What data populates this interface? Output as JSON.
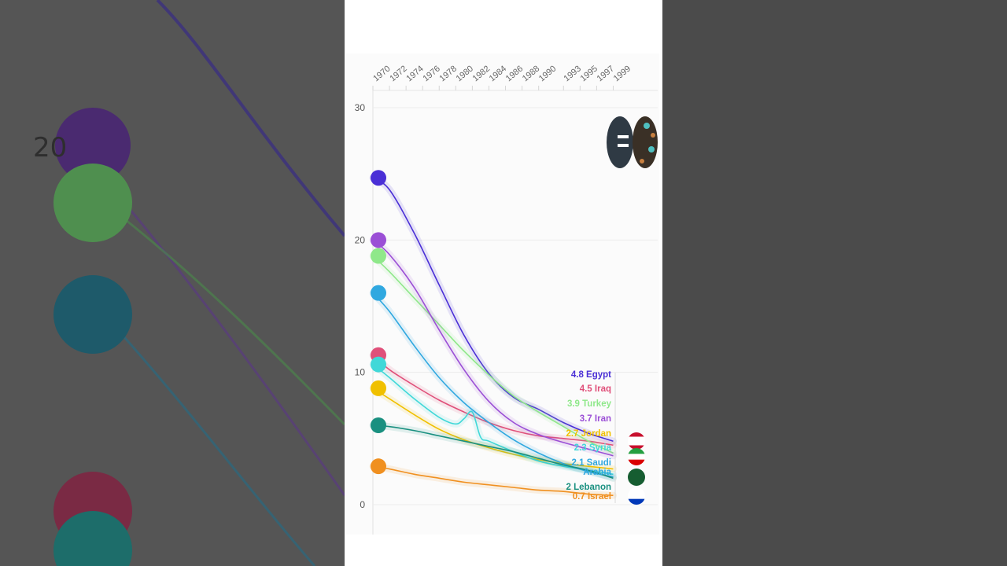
{
  "chart_data": {
    "type": "line",
    "title": "",
    "xlabel": "",
    "ylabel": "",
    "x_ticks": [
      "1970",
      "1972",
      "1974",
      "1976",
      "1978",
      "1980",
      "1982",
      "1984",
      "1986",
      "1988",
      "1990",
      "1993",
      "1995",
      "1997",
      "1999"
    ],
    "y_ticks": [
      0,
      10,
      20,
      30
    ],
    "xlim": [
      1970,
      2000
    ],
    "ylim": [
      0,
      30
    ],
    "grid": true,
    "series": [
      {
        "name": "Egypt",
        "label": "4.8 Egypt",
        "color": "#4a2fd6",
        "x": [
          1970,
          1972,
          1975,
          1978,
          1981,
          1984,
          1987,
          1990,
          1993,
          1996,
          1999
        ],
        "y": [
          24.7,
          23.8,
          20.5,
          16.6,
          12.8,
          9.9,
          8.1,
          7.2,
          6.2,
          5.4,
          4.8
        ]
      },
      {
        "name": "Iraq",
        "label": "4.5 Iraq",
        "color": "#e0507a",
        "x": [
          1970,
          1972,
          1975,
          1978,
          1981,
          1984,
          1987,
          1990,
          1993,
          1996,
          1999
        ],
        "y": [
          11.3,
          10.2,
          9.0,
          7.9,
          7.0,
          6.2,
          5.6,
          5.2,
          5.0,
          4.8,
          4.5
        ]
      },
      {
        "name": "Turkey",
        "label": "3.9 Turkey",
        "color": "#8fe88a",
        "x": [
          1970,
          1972,
          1975,
          1978,
          1981,
          1984,
          1987,
          1990,
          1993,
          1996,
          1999
        ],
        "y": [
          18.8,
          17.6,
          15.6,
          13.6,
          11.6,
          9.8,
          8.2,
          7.0,
          5.9,
          4.8,
          3.9
        ]
      },
      {
        "name": "Iran",
        "label": "3.7 Iran",
        "color": "#9b4fd6",
        "x": [
          1970,
          1972,
          1975,
          1978,
          1981,
          1984,
          1987,
          1990,
          1993,
          1996,
          1999
        ],
        "y": [
          20.0,
          18.9,
          16.4,
          13.2,
          10.2,
          7.8,
          6.2,
          5.3,
          4.7,
          4.2,
          3.7
        ]
      },
      {
        "name": "Jordan",
        "label": "2.7 Jordan",
        "color": "#f0c000",
        "x": [
          1970,
          1972,
          1975,
          1978,
          1981,
          1984,
          1987,
          1990,
          1993,
          1996,
          1999
        ],
        "y": [
          8.8,
          8.0,
          6.8,
          5.7,
          4.9,
          4.3,
          3.8,
          3.4,
          3.1,
          2.9,
          2.7
        ]
      },
      {
        "name": "Syria",
        "label": "2.3 Syria",
        "color": "#40d8d8",
        "x": [
          1970,
          1972,
          1975,
          1978,
          1980,
          1981,
          1982,
          1983,
          1984,
          1987,
          1990,
          1993,
          1996,
          1999
        ],
        "y": [
          10.6,
          9.6,
          8.0,
          6.6,
          6.1,
          6.5,
          7.0,
          5.1,
          4.8,
          4.0,
          3.3,
          2.9,
          2.6,
          2.3
        ]
      },
      {
        "name": "Saudi Arabia",
        "label": "2.1 Saudi\nArabia",
        "color": "#30a8e0",
        "x": [
          1970,
          1972,
          1975,
          1978,
          1981,
          1984,
          1987,
          1990,
          1993,
          1996,
          1999
        ],
        "y": [
          16.0,
          14.6,
          12.0,
          9.6,
          7.7,
          6.2,
          4.9,
          3.9,
          3.1,
          2.5,
          2.1
        ]
      },
      {
        "name": "Lebanon",
        "label": "2 Lebanon",
        "color": "#1a9080",
        "x": [
          1970,
          1972,
          1975,
          1978,
          1981,
          1984,
          1987,
          1990,
          1993,
          1996,
          1999
        ],
        "y": [
          6.0,
          5.9,
          5.6,
          5.2,
          4.8,
          4.4,
          4.0,
          3.5,
          3.0,
          2.6,
          2.0
        ]
      },
      {
        "name": "Israel",
        "label": "0.7 Israel",
        "color": "#f09020",
        "x": [
          1970,
          1972,
          1975,
          1978,
          1981,
          1984,
          1987,
          1990,
          1993,
          1996,
          1999
        ],
        "y": [
          2.9,
          2.7,
          2.3,
          2.0,
          1.7,
          1.5,
          1.3,
          1.1,
          1.0,
          0.8,
          0.7
        ]
      }
    ],
    "flags": [
      "lebanon-flag",
      "iran-flag",
      "saudi-arabia-flag",
      "israel-flag"
    ]
  }
}
